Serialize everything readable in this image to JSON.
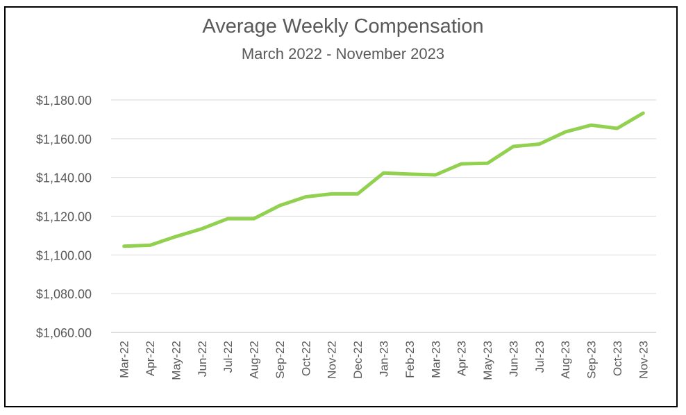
{
  "chart_data": {
    "type": "line",
    "title": "Average Weekly Compensation",
    "subtitle": "March 2022 - November 2023",
    "xlabel": "",
    "ylabel": "",
    "categories": [
      "Mar-22",
      "Apr-22",
      "May-22",
      "Jun-22",
      "Jul-22",
      "Aug-22",
      "Sep-22",
      "Oct-22",
      "Nov-22",
      "Dec-22",
      "Jan-23",
      "Feb-23",
      "Mar-23",
      "Apr-23",
      "May-23",
      "Jun-23",
      "Jul-23",
      "Aug-23",
      "Sep-23",
      "Oct-23",
      "Nov-23"
    ],
    "series": [
      {
        "values": [
          1104.5,
          1105.0,
          1109.5,
          1113.5,
          1118.7,
          1118.7,
          1125.5,
          1130.0,
          1131.5,
          1131.5,
          1142.3,
          1141.7,
          1141.3,
          1147.0,
          1147.3,
          1156.0,
          1157.2,
          1163.5,
          1167.0,
          1165.3,
          1173.2
        ],
        "color": "#92D050"
      }
    ],
    "ylim": [
      1060,
      1180
    ],
    "yticks": [
      1060,
      1080,
      1100,
      1120,
      1140,
      1160,
      1180
    ],
    "ytick_labels": [
      "$1,060.00",
      "$1,080.00",
      "$1,100.00",
      "$1,120.00",
      "$1,140.00",
      "$1,160.00",
      "$1,180.00"
    ],
    "grid": true,
    "legend": "none"
  }
}
